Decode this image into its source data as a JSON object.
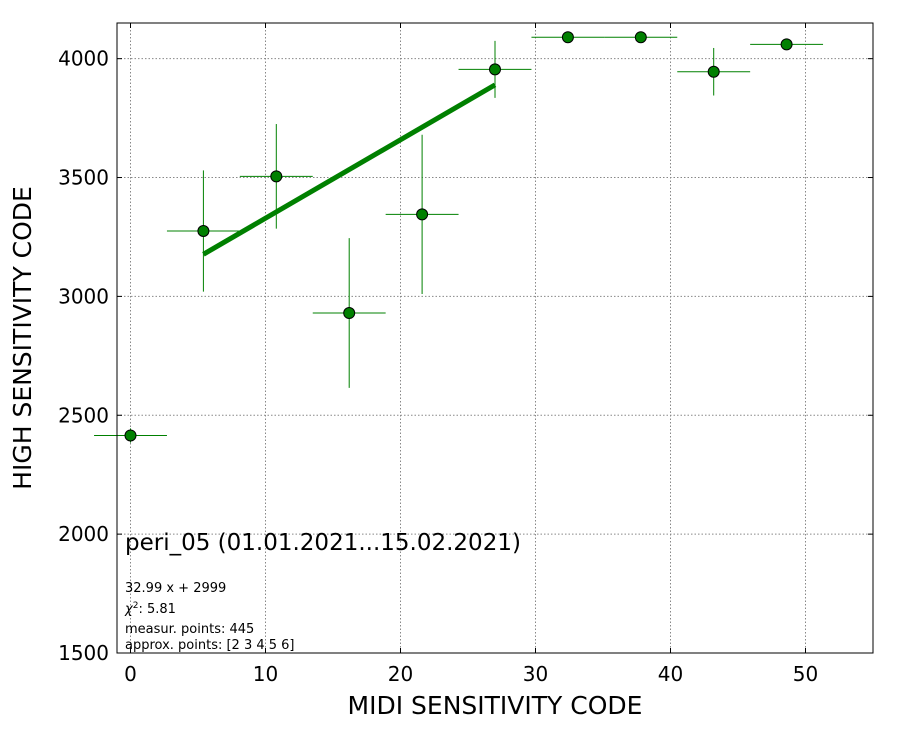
{
  "chart_data": {
    "type": "scatter",
    "xlabel": "MIDI SENSITIVITY CODE",
    "ylabel": "HIGH SENSITIVITY CODE",
    "xlim": [
      -1,
      55
    ],
    "ylim": [
      1500,
      4150
    ],
    "xticks": [
      0,
      10,
      20,
      30,
      40,
      50
    ],
    "yticks": [
      1500,
      2000,
      2500,
      3000,
      3500,
      4000
    ],
    "grid": true,
    "color": "#008000",
    "points": [
      {
        "x": 0.0,
        "y": 2415,
        "xerr": 2.7,
        "yerr": 30
      },
      {
        "x": 5.4,
        "y": 3275,
        "xerr": 2.7,
        "yerr": 255
      },
      {
        "x": 10.8,
        "y": 3505,
        "xerr": 2.7,
        "yerr": 220
      },
      {
        "x": 16.2,
        "y": 2930,
        "xerr": 2.7,
        "yerr": 315
      },
      {
        "x": 21.6,
        "y": 3345,
        "xerr": 2.7,
        "yerr": 335
      },
      {
        "x": 27.0,
        "y": 3955,
        "xerr": 2.7,
        "yerr": 120
      },
      {
        "x": 32.4,
        "y": 4090,
        "xerr": 2.7,
        "yerr": 0
      },
      {
        "x": 37.8,
        "y": 4090,
        "xerr": 2.7,
        "yerr": 0
      },
      {
        "x": 43.2,
        "y": 3945,
        "xerr": 2.7,
        "yerr": 100
      },
      {
        "x": 48.6,
        "y": 4060,
        "xerr": 2.7,
        "yerr": 0
      }
    ],
    "fit": {
      "slope": 32.99,
      "intercept": 2999,
      "x_from": 5.4,
      "x_to": 27.0
    },
    "annotation_title": "peri_05 (01.01.2021...15.02.2021)",
    "annotation_lines": {
      "equation": "32.99 x + 2999",
      "chi_label": "χ",
      "chi_sup": "2",
      "chi_value": ": 5.81",
      "measur": "measur. points: 445",
      "approx": "approx. points: [2 3 4 5 6]"
    }
  }
}
